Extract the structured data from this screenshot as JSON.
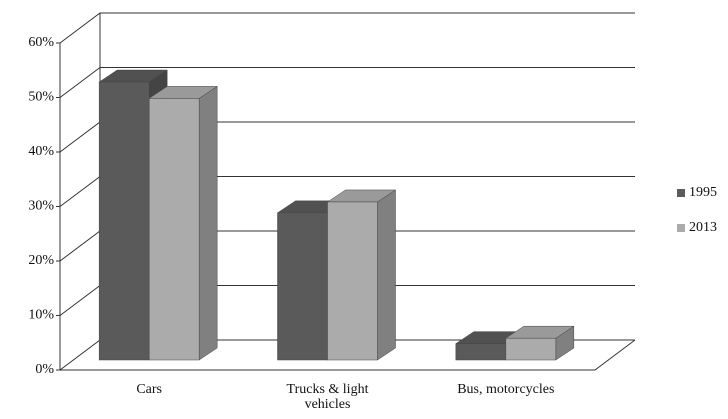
{
  "chart_data": {
    "type": "bar3d",
    "categories": [
      "Cars",
      "Trucks & light vehicles",
      "Bus, motorcycles"
    ],
    "series": [
      {
        "name": "1995",
        "color": "#5a5a5a",
        "values": [
          51,
          27,
          3
        ]
      },
      {
        "name": "2013",
        "color": "#ababab",
        "values": [
          48,
          29,
          4
        ]
      }
    ],
    "ylim": [
      0,
      60
    ],
    "yticks": [
      {
        "value": 0,
        "label": "0%"
      },
      {
        "value": 10,
        "label": "10%"
      },
      {
        "value": 20,
        "label": "20%"
      },
      {
        "value": 30,
        "label": "30%"
      },
      {
        "value": 40,
        "label": "40%"
      },
      {
        "value": 50,
        "label": "50%"
      },
      {
        "value": 60,
        "label": "60%"
      }
    ],
    "grid": true,
    "legend": "right"
  }
}
